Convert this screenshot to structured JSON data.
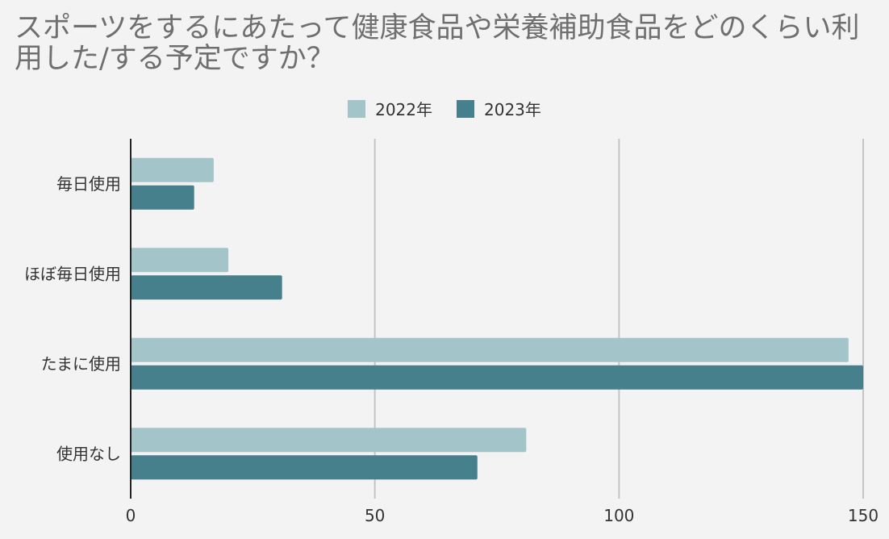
{
  "chart_data": {
    "type": "bar",
    "orientation": "horizontal",
    "title": "スポーツをするにあたって健康食品や栄養補助食品をどのくらい利用した/する予定ですか？",
    "categories": [
      "毎日使用",
      "ほぼ毎日使用",
      "たまに使用",
      "使用なし"
    ],
    "series": [
      {
        "name": "2022年",
        "values": [
          17,
          20,
          147,
          81
        ],
        "color": "#a3c4c9"
      },
      {
        "name": "2023年",
        "values": [
          13,
          31,
          150,
          71
        ],
        "color": "#47808d"
      }
    ],
    "xlim": [
      0,
      150
    ],
    "xticks": [
      0,
      50,
      100,
      150
    ],
    "grid": true,
    "legend_position": "top"
  }
}
